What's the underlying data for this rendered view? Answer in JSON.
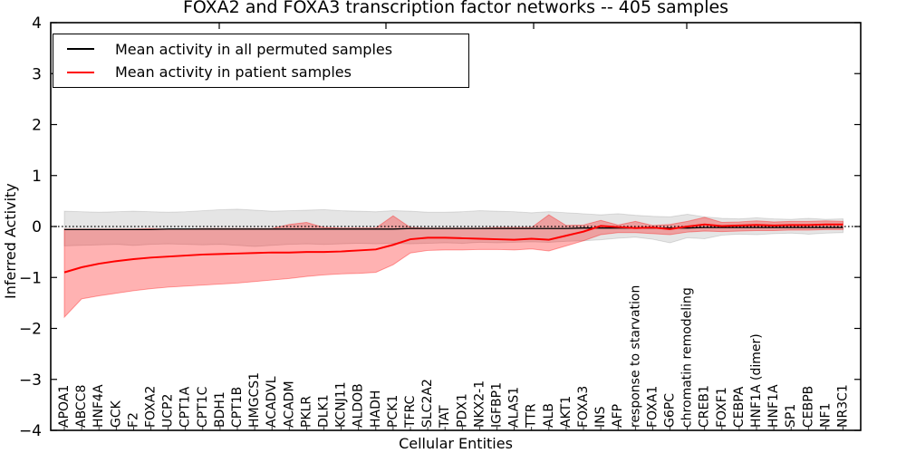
{
  "title": "FOXA2 and FOXA3 transcription factor networks -- 405 samples",
  "legend": {
    "items": [
      {
        "label": "Mean activity in all permuted samples",
        "color": "#000000"
      },
      {
        "label": "Mean activity in patient samples",
        "color": "#ff0000"
      }
    ]
  },
  "axes": {
    "ylabel": "Inferred Activity",
    "xlabel": "Cellular Entities",
    "ytick_labels": [
      "4",
      "3",
      "2",
      "1",
      "0",
      "−1",
      "−2",
      "−3",
      "−4"
    ],
    "ytick_values": [
      4,
      3,
      2,
      1,
      0,
      -1,
      -2,
      -3,
      -4
    ]
  },
  "chart_data": {
    "type": "line",
    "title": "FOXA2 and FOXA3 transcription factor networks -- 405 samples",
    "xlabel": "Cellular Entities",
    "ylabel": "Inferred Activity",
    "ylim": [
      -4,
      4
    ],
    "grid": false,
    "legend_position": "upper left",
    "zero_line": {
      "y": 0,
      "style": "dotted",
      "color": "#000000"
    },
    "categories": [
      "APOA1",
      "ABCC8",
      "HNF4A",
      "GCK",
      "F2",
      "FOXA2",
      "UCP2",
      "CPT1A",
      "CPT1C",
      "BDH1",
      "CPT1B",
      "HMGCS1",
      "ACADVL",
      "ACADM",
      "PKLR",
      "DLK1",
      "KCNJ11",
      "ALDOB",
      "HADH",
      "PCK1",
      "TFRC",
      "SLC2A2",
      "TAT",
      "PDX1",
      "NKX2-1",
      "IGFBP1",
      "ALAS1",
      "TTR",
      "ALB",
      "AKT1",
      "FOXA3",
      "INS",
      "AFP",
      "response to starvation",
      "FOXA1",
      "G6PC",
      "chromatin remodeling",
      "CREB1",
      "FOXF1",
      "CEBPA",
      "HNF1A (dimer)",
      "HNF1A",
      "SP1",
      "CEBPB",
      "NF1",
      "NR3C1"
    ],
    "series": [
      {
        "name": "Mean activity in all permuted samples",
        "color": "#000000",
        "width": 1.3,
        "values": [
          -0.06,
          -0.06,
          -0.06,
          -0.06,
          -0.06,
          -0.06,
          -0.05,
          -0.05,
          -0.05,
          -0.05,
          -0.05,
          -0.05,
          -0.05,
          -0.05,
          -0.05,
          -0.05,
          -0.05,
          -0.05,
          -0.05,
          -0.05,
          -0.04,
          -0.04,
          -0.04,
          -0.04,
          -0.04,
          -0.04,
          -0.04,
          -0.04,
          -0.04,
          -0.04,
          -0.03,
          -0.03,
          -0.03,
          -0.03,
          -0.03,
          -0.03,
          -0.03,
          -0.02,
          -0.02,
          -0.02,
          -0.02,
          -0.02,
          -0.02,
          -0.02,
          -0.02,
          -0.02
        ]
      },
      {
        "name": "Mean activity in patient samples",
        "color": "#ff0000",
        "width": 2,
        "values": [
          -0.9,
          -0.8,
          -0.73,
          -0.68,
          -0.64,
          -0.61,
          -0.59,
          -0.57,
          -0.55,
          -0.54,
          -0.53,
          -0.52,
          -0.51,
          -0.51,
          -0.5,
          -0.5,
          -0.49,
          -0.47,
          -0.45,
          -0.36,
          -0.25,
          -0.22,
          -0.22,
          -0.23,
          -0.24,
          -0.25,
          -0.26,
          -0.24,
          -0.26,
          -0.18,
          -0.1,
          0.01,
          -0.01,
          -0.03,
          -0.02,
          -0.05,
          0.0,
          0.04,
          0.01,
          0.02,
          0.03,
          0.02,
          0.03,
          0.03,
          0.04,
          0.04
        ]
      }
    ],
    "bands": [
      {
        "name": "permuted samples band",
        "fill": "rgba(0,0,0,0.10)",
        "edge": "rgba(0,0,0,0.12)",
        "high": [
          0.3,
          0.29,
          0.28,
          0.29,
          0.3,
          0.29,
          0.28,
          0.29,
          0.31,
          0.33,
          0.34,
          0.32,
          0.3,
          0.31,
          0.32,
          0.33,
          0.31,
          0.3,
          0.29,
          0.31,
          0.3,
          0.28,
          0.28,
          0.29,
          0.31,
          0.3,
          0.29,
          0.27,
          0.29,
          0.27,
          0.25,
          0.23,
          0.25,
          0.22,
          0.2,
          0.19,
          0.24,
          0.19,
          0.16,
          0.15,
          0.17,
          0.15,
          0.14,
          0.16,
          0.14,
          0.15
        ],
        "low": [
          -0.38,
          -0.37,
          -0.36,
          -0.35,
          -0.37,
          -0.35,
          -0.34,
          -0.35,
          -0.36,
          -0.35,
          -0.37,
          -0.39,
          -0.37,
          -0.35,
          -0.34,
          -0.35,
          -0.34,
          -0.33,
          -0.34,
          -0.33,
          -0.34,
          -0.33,
          -0.32,
          -0.33,
          -0.31,
          -0.32,
          -0.31,
          -0.3,
          -0.31,
          -0.29,
          -0.28,
          -0.26,
          -0.23,
          -0.21,
          -0.25,
          -0.32,
          -0.22,
          -0.24,
          -0.17,
          -0.15,
          -0.16,
          -0.14,
          -0.13,
          -0.15,
          -0.13,
          -0.12
        ]
      },
      {
        "name": "patient samples band",
        "fill": "rgba(255,0,0,0.30)",
        "edge": "rgba(255,0,0,0.35)",
        "high": [
          -0.05,
          -0.05,
          -0.05,
          -0.05,
          -0.05,
          -0.04,
          -0.05,
          -0.05,
          -0.04,
          -0.04,
          -0.04,
          -0.04,
          -0.04,
          0.04,
          0.08,
          -0.02,
          -0.03,
          -0.03,
          -0.03,
          0.21,
          -0.02,
          -0.03,
          -0.03,
          -0.03,
          -0.03,
          -0.02,
          -0.02,
          -0.02,
          0.23,
          0.02,
          0.03,
          0.12,
          0.03,
          0.1,
          0.02,
          0.04,
          0.1,
          0.18,
          0.08,
          0.09,
          0.11,
          0.09,
          0.1,
          0.1,
          0.11,
          0.1
        ],
        "low": [
          -1.78,
          -1.42,
          -1.36,
          -1.31,
          -1.26,
          -1.22,
          -1.19,
          -1.17,
          -1.15,
          -1.13,
          -1.11,
          -1.08,
          -1.05,
          -1.02,
          -0.98,
          -0.95,
          -0.93,
          -0.92,
          -0.9,
          -0.75,
          -0.52,
          -0.47,
          -0.46,
          -0.46,
          -0.45,
          -0.45,
          -0.46,
          -0.44,
          -0.48,
          -0.38,
          -0.28,
          -0.16,
          -0.12,
          -0.12,
          -0.14,
          -0.16,
          -0.11,
          -0.09,
          -0.1,
          -0.09,
          -0.08,
          -0.08,
          -0.07,
          -0.07,
          -0.06,
          -0.06
        ]
      }
    ]
  }
}
